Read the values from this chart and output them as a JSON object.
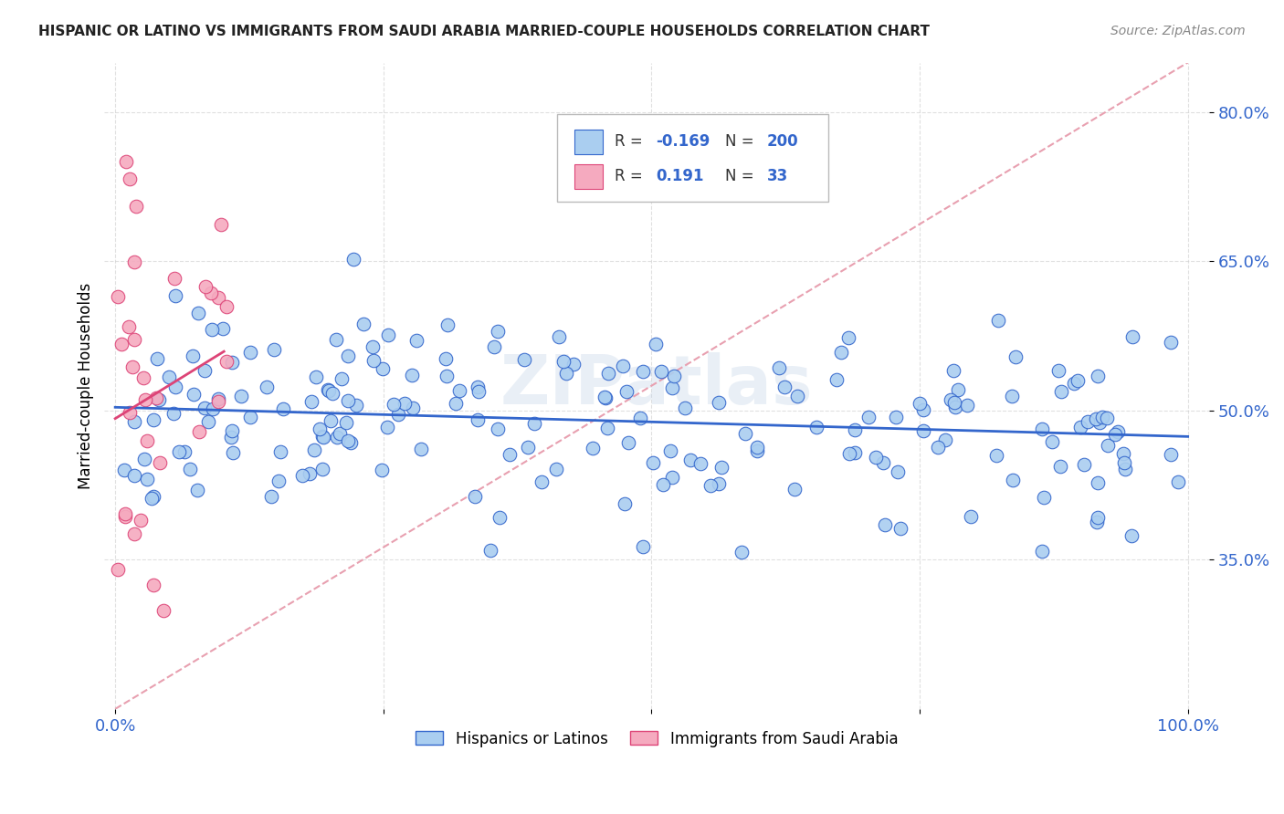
{
  "title": "HISPANIC OR LATINO VS IMMIGRANTS FROM SAUDI ARABIA MARRIED-COUPLE HOUSEHOLDS CORRELATION CHART",
  "source": "Source: ZipAtlas.com",
  "ylabel": "Married-couple Households",
  "blue_R": -0.169,
  "blue_N": 200,
  "pink_R": 0.191,
  "pink_N": 33,
  "blue_color": "#aacef0",
  "pink_color": "#f5aabf",
  "blue_line_color": "#3366cc",
  "pink_line_color": "#dd4477",
  "diagonal_color": "#e8a0b0",
  "grid_color": "#cccccc",
  "watermark": "ZIPatlas",
  "tick_color": "#3366cc",
  "title_color": "#222222",
  "source_color": "#888888",
  "yticks": [
    0.35,
    0.5,
    0.65,
    0.8
  ],
  "ytick_labels": [
    "35.0%",
    "50.0%",
    "65.0%",
    "80.0%"
  ],
  "xtick_labels": [
    "0.0%",
    "100.0%"
  ],
  "xlim": [
    0.0,
    1.0
  ],
  "ylim": [
    0.2,
    0.85
  ]
}
